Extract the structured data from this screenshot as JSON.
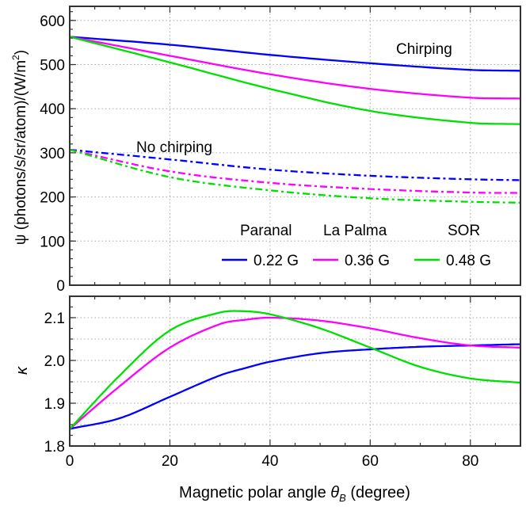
{
  "chart_data": [
    {
      "type": "line",
      "ylabel": "ψ (photons/s/sr/atom)/(W/m²)",
      "ylabel_parts": [
        "ψ (photons/s/sr/atom)/(W/m",
        "2",
        ")"
      ],
      "xlim": [
        0,
        90
      ],
      "ylim": [
        0,
        632
      ],
      "yticks": [
        0,
        100,
        200,
        300,
        400,
        500,
        600
      ],
      "xticks": [
        0,
        20,
        40,
        60,
        80
      ],
      "grid": true,
      "annotations": [
        "Chirping",
        "No chirping"
      ],
      "legend": {
        "placement": "bottom-right",
        "sites": [
          "Paranal",
          "La Palma",
          "SOR"
        ],
        "fields": [
          "0.22 G",
          "0.36 G",
          "0.48 G"
        ]
      },
      "x": [
        0,
        20,
        40,
        60,
        80,
        90
      ],
      "series": [
        {
          "name": "0.22 G",
          "group": "Chirping",
          "color": "#0000ff",
          "style": "solid",
          "values": [
            563,
            545,
            522,
            503,
            488,
            486
          ]
        },
        {
          "name": "0.36 G",
          "group": "Chirping",
          "color": "#ff00ff",
          "style": "solid",
          "values": [
            563,
            520,
            478,
            445,
            425,
            423
          ]
        },
        {
          "name": "0.48 G",
          "group": "Chirping",
          "color": "#00e000",
          "style": "solid",
          "values": [
            563,
            505,
            445,
            395,
            368,
            365
          ]
        },
        {
          "name": "0.22 G",
          "group": "No chirping",
          "color": "#0000ff",
          "style": "dashdot",
          "values": [
            307,
            285,
            262,
            248,
            240,
            238
          ]
        },
        {
          "name": "0.36 G",
          "group": "No chirping",
          "color": "#ff00ff",
          "style": "dashdot",
          "values": [
            307,
            258,
            232,
            218,
            210,
            209
          ]
        },
        {
          "name": "0.48 G",
          "group": "No chirping",
          "color": "#00e000",
          "style": "dashdot",
          "values": [
            307,
            245,
            215,
            197,
            189,
            187
          ]
        }
      ]
    },
    {
      "type": "line",
      "ylabel": "κ",
      "xlabel_parts": [
        "Magnetic polar angle ",
        "θ",
        "B",
        " (degree)"
      ],
      "xlim": [
        0,
        90
      ],
      "ylim": [
        1.8,
        2.15
      ],
      "yticks": [
        1.8,
        1.9,
        2.0,
        2.1
      ],
      "yticklabels": [
        "1.8",
        "1.9",
        "2.0",
        "2.1"
      ],
      "xticks": [
        0,
        20,
        40,
        60,
        80
      ],
      "grid": true,
      "x": [
        0,
        10,
        20,
        30,
        35,
        40,
        50,
        60,
        70,
        80,
        90
      ],
      "series": [
        {
          "name": "0.22 G",
          "color": "#0000ff",
          "values": [
            1.84,
            1.865,
            1.915,
            1.965,
            1.982,
            1.997,
            2.017,
            2.026,
            2.032,
            2.035,
            2.038
          ]
        },
        {
          "name": "0.36 G",
          "color": "#ff00ff",
          "values": [
            1.84,
            1.94,
            2.03,
            2.085,
            2.095,
            2.1,
            2.093,
            2.075,
            2.052,
            2.035,
            2.03
          ]
        },
        {
          "name": "0.48 G",
          "color": "#00e000",
          "values": [
            1.84,
            1.965,
            2.07,
            2.112,
            2.115,
            2.108,
            2.075,
            2.03,
            1.985,
            1.958,
            1.948
          ]
        }
      ]
    }
  ]
}
